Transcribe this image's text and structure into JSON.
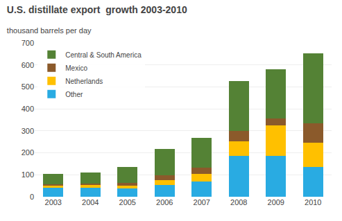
{
  "chart_data": {
    "type": "bar",
    "stacked": true,
    "title": "U.S. distillate export  growth 2003-2010",
    "subtitle": "thousand barrels per day",
    "categories": [
      "2003",
      "2004",
      "2005",
      "2006",
      "2007",
      "2008",
      "2009",
      "2010"
    ],
    "series": [
      {
        "name": "Other",
        "color": "#29abe2",
        "values": [
          42,
          42,
          37,
          55,
          70,
          185,
          185,
          135
        ]
      },
      {
        "name": "Netherlands",
        "color": "#ffc000",
        "values": [
          8,
          12,
          15,
          22,
          35,
          68,
          140,
          110
        ]
      },
      {
        "name": "Mexico",
        "color": "#8b5a2b",
        "values": [
          7,
          5,
          12,
          20,
          28,
          48,
          30,
          88
        ]
      },
      {
        "name": "Central & South America",
        "color": "#548235",
        "values": [
          48,
          50,
          72,
          120,
          135,
          225,
          225,
          320
        ]
      }
    ],
    "ylim": [
      0,
      700
    ],
    "yticks": [
      0,
      100,
      200,
      300,
      400,
      500,
      600,
      700
    ],
    "grid": true,
    "legend": "upper left"
  }
}
